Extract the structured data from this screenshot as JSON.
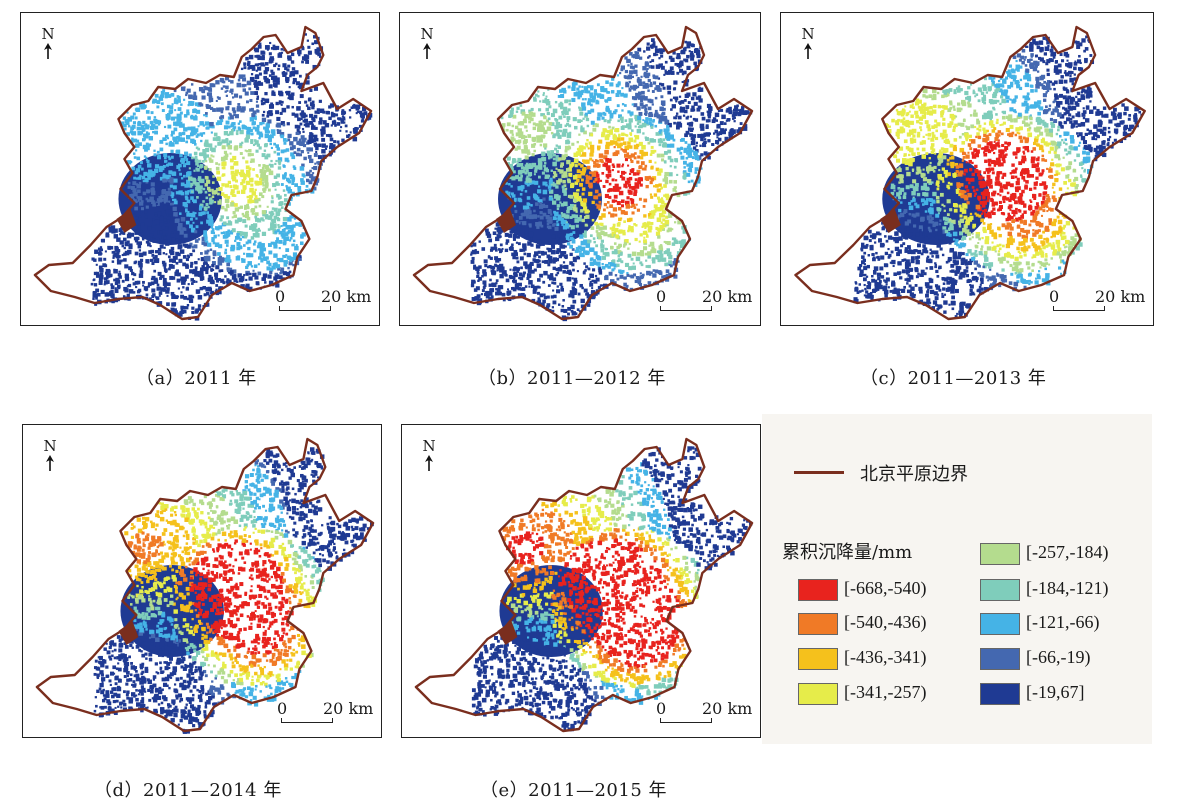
{
  "panels": [
    {
      "id": "a",
      "caption": "（a）2011 年",
      "stage": 0
    },
    {
      "id": "b",
      "caption": "（b）2011—2012 年",
      "stage": 1
    },
    {
      "id": "c",
      "caption": "（c）2011—2013 年",
      "stage": 2
    },
    {
      "id": "d",
      "caption": "（d）2011—2014 年",
      "stage": 3
    },
    {
      "id": "e",
      "caption": "（e）2011—2015 年",
      "stage": 4
    }
  ],
  "map": {
    "north_label": "N",
    "scale_zero": "0",
    "scale_label": "20 km",
    "boundary_color": "#7a2e1e"
  },
  "legend": {
    "boundary_label": "北京平原边界",
    "title": "累积沉降量/mm",
    "classes": [
      {
        "label": "[-668,-540)",
        "color": "#e8231e"
      },
      {
        "label": "[-540,-436)",
        "color": "#f07a26"
      },
      {
        "label": "[-436,-341)",
        "color": "#f5c11c"
      },
      {
        "label": "[-341,-257)",
        "color": "#e6ec4a"
      },
      {
        "label": "[-257,-184)",
        "color": "#b4dc8e"
      },
      {
        "label": "[-184,-121)",
        "color": "#7fcdbb"
      },
      {
        "label": "[-121,-66)",
        "color": "#45b3e6"
      },
      {
        "label": "[-66,-19)",
        "color": "#4468b0"
      },
      {
        "label": "[-19,67]",
        "color": "#1f3a93"
      }
    ]
  }
}
